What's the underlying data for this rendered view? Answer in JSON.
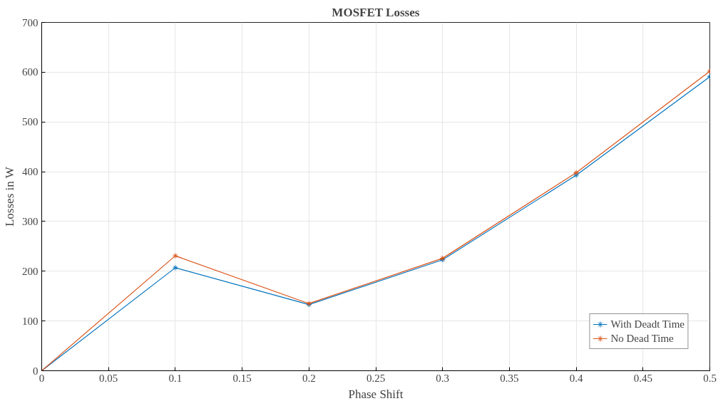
{
  "chart_data": {
    "type": "line",
    "title": "MOSFET Losses",
    "xlabel": "Phase Shift",
    "ylabel": "Losses in W",
    "x": [
      0,
      0.1,
      0.2,
      0.3,
      0.4,
      0.5
    ],
    "series": [
      {
        "name": "With Deadt Time",
        "color": "#0072bd",
        "values": [
          0,
          207,
          133,
          223,
          393,
          591
        ]
      },
      {
        "name": "No Dead Time",
        "color": "#d95319",
        "values": [
          0,
          231,
          135,
          226,
          398,
          602
        ]
      }
    ],
    "xlim": [
      0,
      0.5
    ],
    "xticks": [
      0,
      0.05,
      0.1,
      0.15,
      0.2,
      0.25,
      0.3,
      0.35,
      0.4,
      0.45,
      0.5
    ],
    "ylim": [
      0,
      700
    ],
    "yticks": [
      0,
      100,
      200,
      300,
      400,
      500,
      600,
      700
    ],
    "grid": true,
    "legend": "bottom right",
    "marker": "cross",
    "line_style": "solid"
  }
}
